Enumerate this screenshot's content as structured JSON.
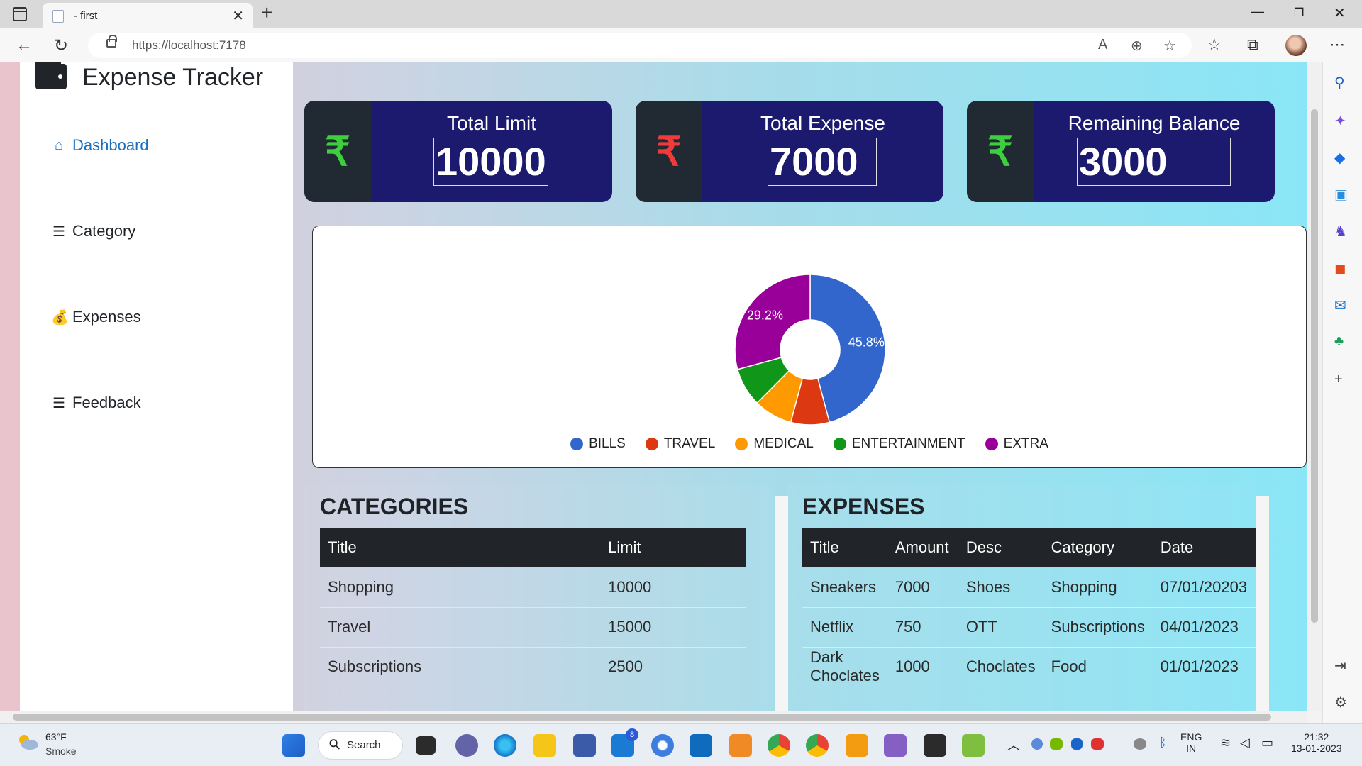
{
  "browser": {
    "tab_title": "- first",
    "url": "https://localhost:7178"
  },
  "sidebar": {
    "brand": "Expense Tracker",
    "items": [
      {
        "label": "Dashboard",
        "icon": "home-icon"
      },
      {
        "label": "Category",
        "icon": "list-check-icon"
      },
      {
        "label": "Expenses",
        "icon": "money-bag-icon"
      },
      {
        "label": "Feedback",
        "icon": "list-check-icon"
      }
    ]
  },
  "cards": [
    {
      "title": "Total Limit",
      "value": "10000",
      "icon": "rupee-icon",
      "icon_color": "#3ecf3e"
    },
    {
      "title": "Total Expense",
      "value": "7000",
      "icon": "rupee-icon",
      "icon_color": "#ef3b3b"
    },
    {
      "title": "Remaining Balance",
      "value": "3000",
      "icon": "rupee-icon",
      "icon_color": "#3ecf3e"
    }
  ],
  "chart_data": {
    "type": "pie",
    "donut": true,
    "categories": [
      "BILLS",
      "TRAVEL",
      "MEDICAL",
      "ENTERTAINMENT",
      "EXTRA"
    ],
    "values": [
      45.8,
      8.3,
      8.3,
      8.3,
      29.2
    ],
    "colors": [
      "#3366cc",
      "#dc3912",
      "#ff9900",
      "#109618",
      "#990099"
    ],
    "data_labels": [
      "45.8%",
      "",
      "",
      "",
      "29.2%"
    ],
    "legend_position": "bottom"
  },
  "categories_table": {
    "title": "CATEGORIES",
    "headers": [
      "Title",
      "Limit"
    ],
    "rows": [
      [
        "Shopping",
        "10000"
      ],
      [
        "Travel",
        "15000"
      ],
      [
        "Subscriptions",
        "2500"
      ]
    ]
  },
  "expenses_table": {
    "title": "EXPENSES",
    "headers": [
      "Title",
      "Amount",
      "Desc",
      "Category",
      "Date"
    ],
    "rows": [
      [
        "Sneakers",
        "7000",
        "Shoes",
        "Shopping",
        "07/01/20203"
      ],
      [
        "Netflix",
        "750",
        "OTT",
        "Subscriptions",
        "04/01/2023"
      ],
      [
        "Dark Choclates",
        "1000",
        "Choclates",
        "Food",
        "01/01/2023"
      ]
    ]
  },
  "taskbar": {
    "weather_temp": "63°F",
    "weather_desc": "Smoke",
    "search_label": "Search",
    "mail_badge": "8",
    "lang": "ENG",
    "region": "IN",
    "time": "21:32",
    "date": "13-01-2023"
  }
}
